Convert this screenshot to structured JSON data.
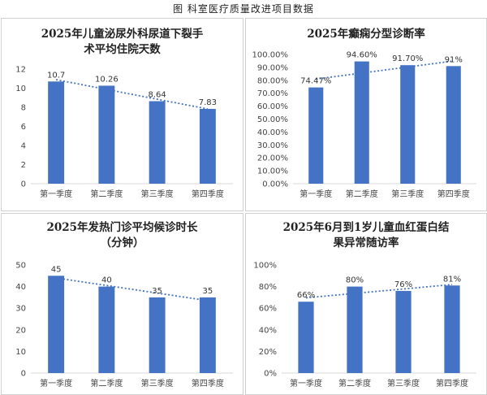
{
  "page_title": "图  科室医疗质量改进项目数据",
  "chart_data": [
    {
      "type": "bar",
      "title": "2025年儿童泌尿外科尿道下裂手术平均住院天数",
      "categories": [
        "第一季度",
        "第二季度",
        "第三季度",
        "第四季度"
      ],
      "values": [
        10.7,
        10.26,
        8.64,
        7.83
      ],
      "data_labels": [
        "10.7",
        "10.26",
        "8.64",
        "7.83"
      ],
      "ylim": [
        0,
        12
      ],
      "yticks": [
        0,
        2,
        4,
        6,
        8,
        10,
        12
      ],
      "ytick_labels": [
        "0",
        "2",
        "4",
        "6",
        "8",
        "10",
        "12"
      ],
      "trendline": true,
      "grid": false,
      "bar_color": "#4472C4",
      "trend_color": "#4472C4"
    },
    {
      "type": "bar",
      "title": "2025年癫痫分型诊断率",
      "categories": [
        "第一季度",
        "第二季度",
        "第三季度",
        "第四季度"
      ],
      "values": [
        74.47,
        94.6,
        91.7,
        91
      ],
      "data_labels": [
        "74.47%",
        "94.60%",
        "91.70%",
        "91%"
      ],
      "ylim": [
        0,
        100
      ],
      "yticks": [
        0,
        10,
        20,
        30,
        40,
        50,
        60,
        70,
        80,
        90,
        100
      ],
      "ytick_labels": [
        "0.00%",
        "10.00%",
        "20.00%",
        "30.00%",
        "40.00%",
        "50.00%",
        "60.00%",
        "70.00%",
        "80.00%",
        "90.00%",
        "100.00%"
      ],
      "trendline": true,
      "grid": false,
      "bar_color": "#4472C4",
      "trend_color": "#4472C4"
    },
    {
      "type": "bar",
      "title": "2025年发热门诊平均候诊时长（分钟）",
      "categories": [
        "第一季度",
        "第二季度",
        "第三季度",
        "第四季度"
      ],
      "values": [
        45,
        40,
        35,
        35
      ],
      "data_labels": [
        "45",
        "40",
        "35",
        "35"
      ],
      "ylim": [
        0,
        50
      ],
      "yticks": [
        0,
        10,
        20,
        30,
        40,
        50
      ],
      "ytick_labels": [
        "0",
        "10",
        "20",
        "30",
        "40",
        "50"
      ],
      "trendline": true,
      "grid": false,
      "bar_color": "#4472C4",
      "trend_color": "#4472C4"
    },
    {
      "type": "bar",
      "title": "2025年6月到1岁儿童血红蛋白结果异常随访率",
      "categories": [
        "第一季度",
        "第二季度",
        "第三季度",
        "第四季度"
      ],
      "values": [
        66,
        80,
        76,
        81
      ],
      "data_labels": [
        "66%",
        "80%",
        "76%",
        "81%"
      ],
      "ylim": [
        0,
        100
      ],
      "yticks": [
        0,
        20,
        40,
        60,
        80,
        100
      ],
      "ytick_labels": [
        "0%",
        "20%",
        "40%",
        "60%",
        "80%",
        "100%"
      ],
      "trendline": true,
      "grid": false,
      "bar_color": "#4472C4",
      "trend_color": "#4472C4"
    }
  ]
}
